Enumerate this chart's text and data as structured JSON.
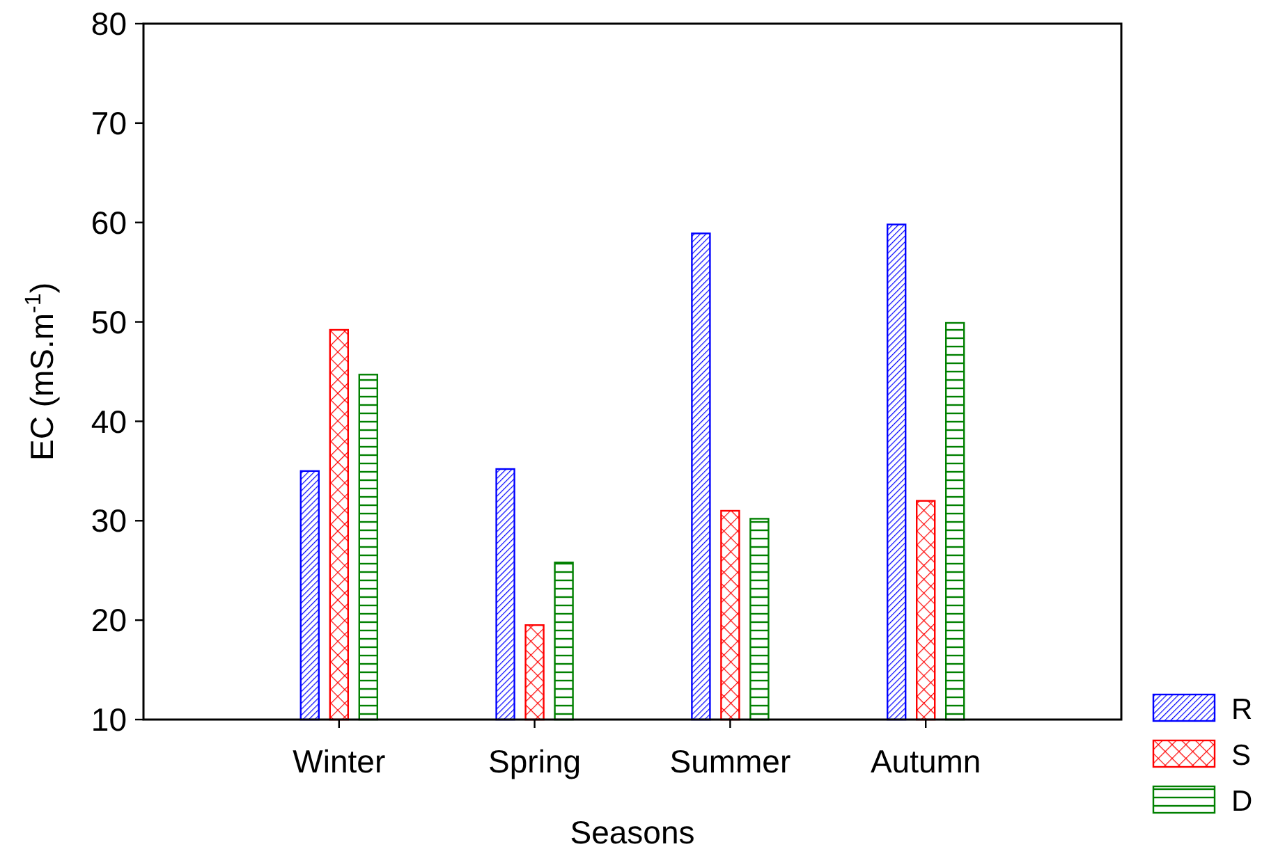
{
  "chart_data": {
    "type": "bar",
    "xlabel": "Seasons",
    "ylabel": "EC (mS.m$^{-1}$)",
    "categories": [
      "Winter",
      "Spring",
      "Summer",
      "Autumn"
    ],
    "series": [
      {
        "name": "R",
        "color": "#0000ff",
        "values": [
          35,
          35.2,
          58.9,
          59.8
        ]
      },
      {
        "name": "S",
        "color": "#ff0000",
        "values": [
          49.2,
          19.5,
          31,
          32
        ]
      },
      {
        "name": "D",
        "color": "#008000",
        "values": [
          44.7,
          25.8,
          30.2,
          49.9
        ]
      }
    ],
    "ylim": [
      10,
      80
    ],
    "yticks": [
      10,
      20,
      30,
      40,
      50,
      60,
      70,
      80
    ],
    "grid": false,
    "legend": "bottom right"
  }
}
